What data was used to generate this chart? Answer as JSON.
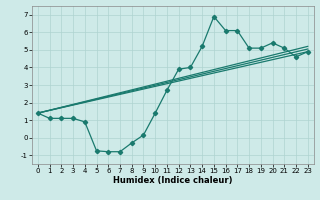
{
  "title": "",
  "xlabel": "Humidex (Indice chaleur)",
  "ylabel": "",
  "xlim": [
    -0.5,
    23.5
  ],
  "ylim": [
    -1.5,
    7.5
  ],
  "xticks": [
    0,
    1,
    2,
    3,
    4,
    5,
    6,
    7,
    8,
    9,
    10,
    11,
    12,
    13,
    14,
    15,
    16,
    17,
    18,
    19,
    20,
    21,
    22,
    23
  ],
  "yticks": [
    -1,
    0,
    1,
    2,
    3,
    4,
    5,
    6,
    7
  ],
  "bg_color": "#ceeae8",
  "line_color": "#1a7a6e",
  "grid_color": "#afd4d0",
  "curve_x": [
    0,
    1,
    2,
    3,
    4,
    5,
    6,
    7,
    8,
    9,
    10,
    11,
    12,
    13,
    14,
    15,
    16,
    17,
    18,
    19,
    20,
    21,
    22,
    23
  ],
  "curve_y": [
    1.4,
    1.1,
    1.1,
    1.1,
    0.9,
    -0.75,
    -0.8,
    -0.8,
    -0.3,
    0.15,
    1.4,
    2.7,
    3.9,
    4.0,
    5.2,
    6.9,
    6.1,
    6.1,
    5.1,
    5.1,
    5.4,
    5.1,
    4.6,
    4.9
  ],
  "line1_x": [
    0,
    23
  ],
  "line1_y": [
    1.4,
    4.9
  ],
  "line2_x": [
    0,
    23
  ],
  "line2_y": [
    1.4,
    5.05
  ],
  "line3_x": [
    0,
    23
  ],
  "line3_y": [
    1.4,
    5.2
  ]
}
